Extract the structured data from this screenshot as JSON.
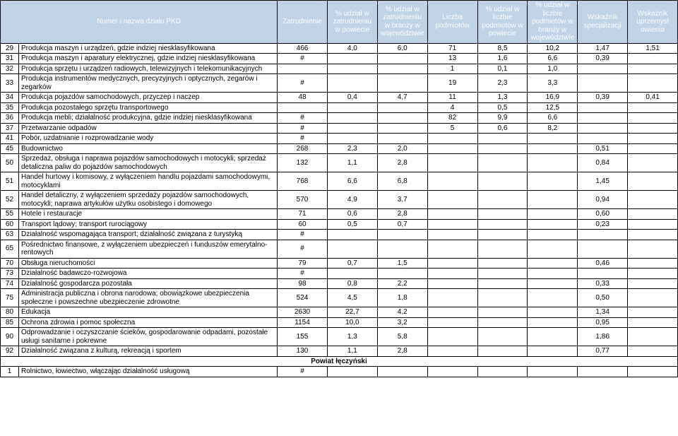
{
  "header": {
    "cols": [
      "Numer i nazwa działu PKD",
      "Zatrudnienie",
      "% udział w zatrudnieniu w powiecie",
      "% udział w zatrudnieniu w branży w województwie",
      "Liczba podmiotów",
      "% udział w liczbie podmiotów w powiecie",
      "% udział w liczbie podmiotów w branży w województwie",
      "Wskaźnik specjalizacji",
      "Wskaźnik uprzemysł owienia"
    ]
  },
  "rows": [
    {
      "id": "29",
      "name": "Produkcja maszyn i urządzeń, gdzie indziej niesklasyfikowana",
      "v": [
        "466",
        "4,0",
        "6,0",
        "71",
        "8,5",
        "10,2",
        "1,47",
        "1,51"
      ]
    },
    {
      "id": "31",
      "name": "Produkcja maszyn i aparatury elektrycznej, gdzie indziej niesklasyfikowana",
      "v": [
        "#",
        "",
        "",
        "13",
        "1,6",
        "6,6",
        "0,39",
        ""
      ]
    },
    {
      "id": "32",
      "name": "Produkcja sprzętu i urządzeń radiowych, telewizyjnych i telekomunikacyjnych",
      "v": [
        "",
        "",
        "",
        "1",
        "0,1",
        "1,0",
        "",
        ""
      ]
    },
    {
      "id": "33",
      "name": "Produkcja instrumentów medycznych, precyzyjnych i optycznych, zegarów i zegarków",
      "v": [
        "#",
        "",
        "",
        "19",
        "2,3",
        "3,3",
        "",
        ""
      ]
    },
    {
      "id": "34",
      "name": "Produkcja pojazdów samochodowych, przyczep i naczep",
      "v": [
        "48",
        "0,4",
        "4,7",
        "11",
        "1,3",
        "16,9",
        "0,39",
        "0,41"
      ]
    },
    {
      "id": "35",
      "name": "Produkcja pozostałego sprzętu transportowego",
      "v": [
        "",
        "",
        "",
        "4",
        "0,5",
        "12,5",
        "",
        ""
      ]
    },
    {
      "id": "36",
      "name": "Produkcja mebli; działalność produkcyjna, gdzie indziej niesklasyfikowana",
      "v": [
        "#",
        "",
        "",
        "82",
        "9,9",
        "6,6",
        "",
        ""
      ]
    },
    {
      "id": "37",
      "name": "Przetwarzanie odpadów",
      "v": [
        "#",
        "",
        "",
        "5",
        "0,6",
        "8,2",
        "",
        ""
      ]
    },
    {
      "id": "41",
      "name": "Pobór, uzdatnianie i rozprowadzanie wody",
      "v": [
        "#",
        "",
        "",
        "",
        "",
        "",
        "",
        ""
      ]
    },
    {
      "id": "45",
      "name": "Budownictwo",
      "v": [
        "268",
        "2,3",
        "2,0",
        "",
        "",
        "",
        "0,51",
        ""
      ]
    },
    {
      "id": "50",
      "name": "Sprzedaż, obsługa i naprawa pojazdów samochodowych  i motocykli; sprzedaż detaliczna paliw do pojazdów samochodowych",
      "v": [
        "132",
        "1,1",
        "2,8",
        "",
        "",
        "",
        "0,84",
        ""
      ]
    },
    {
      "id": "51",
      "name": "Handel hurtowy i komisowy, z wyłączeniem handlu pojazdami samochodowymi, motocyklami",
      "v": [
        "768",
        "6,6",
        "6,8",
        "",
        "",
        "",
        "1,45",
        ""
      ]
    },
    {
      "id": "52",
      "name": "Handel detaliczny,  z  wyłączeniem  sprzedaży pojazdów samochodowych, motocykli; naprawa artykułów użytku osobistego i domowego",
      "v": [
        "570",
        "4,9",
        "3,7",
        "",
        "",
        "",
        "0,94",
        ""
      ]
    },
    {
      "id": "55",
      "name": "Hotele i restauracje",
      "v": [
        "71",
        "0,6",
        "2,8",
        "",
        "",
        "",
        "0,60",
        ""
      ]
    },
    {
      "id": "60",
      "name": "Transport lądowy; transport rurociągowy",
      "v": [
        "60",
        "0,5",
        "0,7",
        "",
        "",
        "",
        "0,23",
        ""
      ]
    },
    {
      "id": "63",
      "name": "Działalność wspomagająca transport; działalność związana z turystyką",
      "v": [
        "#",
        "",
        "",
        "",
        "",
        "",
        "",
        ""
      ]
    },
    {
      "id": "65",
      "name": "Pośrednictwo finansowe, z wyłączeniem ubezpieczeń i funduszów emerytalno- rentowych",
      "v": [
        "#",
        "",
        "",
        "",
        "",
        "",
        "",
        ""
      ]
    },
    {
      "id": "70",
      "name": "Obsługa nieruchomości",
      "v": [
        "79",
        "0,7",
        "1,5",
        "",
        "",
        "",
        "0,46",
        ""
      ]
    },
    {
      "id": "73",
      "name": "Działalność badawczo-rozwojowa",
      "v": [
        "#",
        "",
        "",
        "",
        "",
        "",
        "",
        ""
      ]
    },
    {
      "id": "74",
      "name": "Działalność gospodarcza pozostała",
      "v": [
        "98",
        "0,8",
        "2,2",
        "",
        "",
        "",
        "0,33",
        ""
      ]
    },
    {
      "id": "75",
      "name": "Administracja publiczna i obrona narodowa; obowiązkowe ubezpieczenia społeczne i powszechne ubezpieczenie zdrowotne",
      "v": [
        "524",
        "4,5",
        "1,8",
        "",
        "",
        "",
        "0,50",
        ""
      ]
    },
    {
      "id": "80",
      "name": "Edukacja",
      "v": [
        "2630",
        "22,7",
        "4,2",
        "",
        "",
        "",
        "1,34",
        ""
      ]
    },
    {
      "id": "85",
      "name": "Ochrona zdrowia i pomoc społeczna",
      "v": [
        "1154",
        "10,0",
        "3,2",
        "",
        "",
        "",
        "0,95",
        ""
      ]
    },
    {
      "id": "90",
      "name": "Odprowadzanie i oczyszczanie ścieków, gospodarowanie odpadami, pozostałe usługi sanitarne i pokrewne",
      "v": [
        "155",
        "1,3",
        "5,8",
        "",
        "",
        "",
        "1,86",
        ""
      ]
    },
    {
      "id": "92",
      "name": "Działalność związana z kulturą, rekreacją i sportem",
      "v": [
        "130",
        "1,1",
        "2,8",
        "",
        "",
        "",
        "0,77",
        ""
      ]
    }
  ],
  "section": "Powiat łęczyński",
  "rows2": [
    {
      "id": "1",
      "name": "Rolnictwo, łowiectwo, włączając  działalność usługową",
      "v": [
        "#",
        "",
        "",
        "",
        "",
        "",
        "",
        ""
      ]
    }
  ]
}
